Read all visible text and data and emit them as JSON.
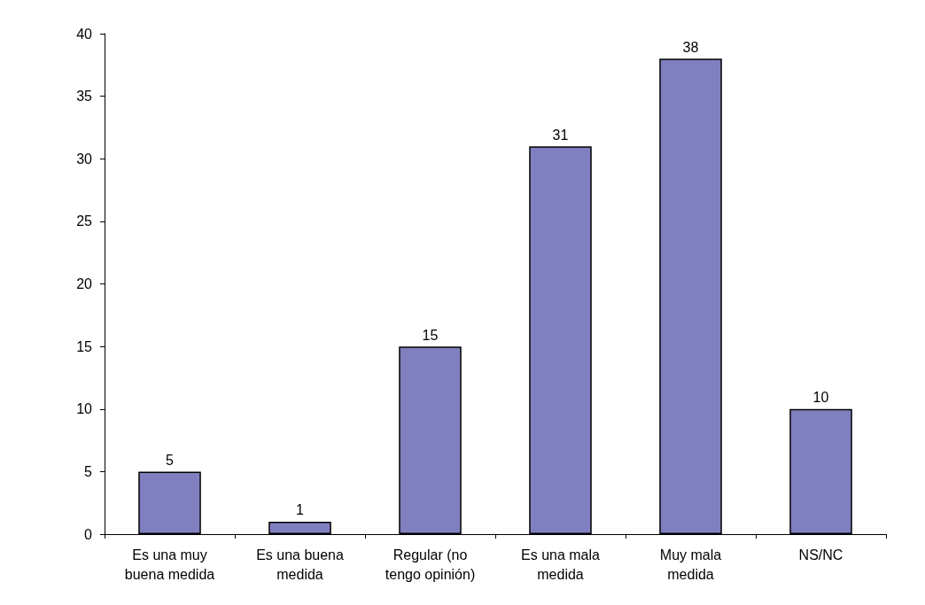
{
  "chart_data": {
    "type": "bar",
    "categories": [
      "Es una muy\nbuena medida",
      "Es una buena\nmedida",
      "Regular (no\ntengo opinión)",
      "Es una mala\nmedida",
      "Muy mala\nmedida",
      "NS/NC"
    ],
    "values": [
      5,
      1,
      15,
      31,
      38,
      10
    ],
    "color": "#8080c0",
    "ylim": [
      0,
      40
    ],
    "yticks": [
      0,
      5,
      10,
      15,
      20,
      25,
      30,
      35,
      40
    ],
    "data_labels": true
  }
}
